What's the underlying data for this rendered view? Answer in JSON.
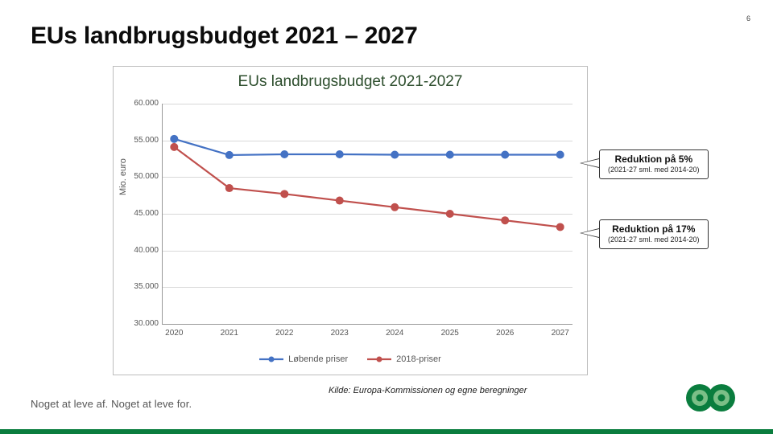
{
  "page_number": "6",
  "title": "EUs landbrugsbudget 2021 – 2027",
  "chart": {
    "type": "line",
    "title": "EUs landbrugsbudget 2021-2027",
    "title_color": "#2c4d2c",
    "title_fontsize": 19,
    "y_axis_label": "Mio. euro",
    "x_categories": [
      "2020",
      "2021",
      "2022",
      "2023",
      "2024",
      "2025",
      "2026",
      "2027"
    ],
    "y_ticks": [
      "30.000",
      "35.000",
      "40.000",
      "45.000",
      "50.000",
      "55.000",
      "60.000"
    ],
    "ylim": [
      30000,
      60000
    ],
    "series": [
      {
        "name": "Løbende priser",
        "color": "#4472c4",
        "marker": "circle",
        "marker_size": 5,
        "line_width": 2.2,
        "values": [
          55200,
          53000,
          53100,
          53100,
          53050,
          53050,
          53050,
          53050
        ]
      },
      {
        "name": "2018-priser",
        "color": "#c0504d",
        "marker": "circle",
        "marker_size": 5,
        "line_width": 2.2,
        "values": [
          54100,
          48500,
          47700,
          46800,
          45900,
          45000,
          44100,
          43200
        ]
      }
    ],
    "grid_color": "#d8d8d8",
    "axis_color": "#999999",
    "background_color": "#ffffff",
    "label_fontsize": 10,
    "legend": {
      "position": "bottom",
      "fontsize": 11
    }
  },
  "callouts": [
    {
      "title": "Reduktion på 5%",
      "sub": "(2021-27 sml. med 2014-20)"
    },
    {
      "title": "Reduktion på 17%",
      "sub": "(2021-27 sml. med 2014-20)"
    }
  ],
  "source": "Kilde: Europa-Kommissionen og egne beregninger",
  "footer_left": "Noget at leve af. Noget at leve for.",
  "brand_colors": {
    "green": "#0a7d3e",
    "ring_bg": "#6aa96e"
  }
}
